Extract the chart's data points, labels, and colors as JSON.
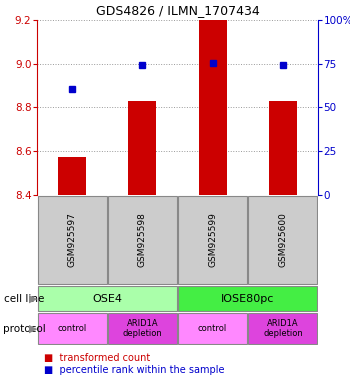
{
  "title": "GDS4826 / ILMN_1707434",
  "samples": [
    "GSM925597",
    "GSM925598",
    "GSM925599",
    "GSM925600"
  ],
  "bar_values": [
    8.575,
    8.83,
    9.2,
    8.83
  ],
  "bar_base": 8.4,
  "dot_values": [
    8.885,
    8.995,
    9.005,
    8.995
  ],
  "ylim": [
    8.4,
    9.2
  ],
  "y_left_ticks": [
    8.4,
    8.6,
    8.8,
    9.0,
    9.2
  ],
  "y_right_ticks": [
    0,
    25,
    50,
    75,
    100
  ],
  "y_right_tick_pos": [
    8.4,
    8.6,
    8.8,
    9.0,
    9.2
  ],
  "bar_color": "#cc0000",
  "dot_color": "#0000cc",
  "cell_line_labels": [
    "OSE4",
    "IOSE80pc"
  ],
  "cell_line_spans": [
    [
      0,
      2
    ],
    [
      2,
      4
    ]
  ],
  "cell_line_color_light": "#aaffaa",
  "cell_line_color_dark": "#44ee44",
  "protocol_labels": [
    "control",
    "ARID1A\ndepletion",
    "control",
    "ARID1A\ndepletion"
  ],
  "protocol_color_light": "#ff88ff",
  "protocol_color_dark": "#dd44dd",
  "grid_color": "#999999",
  "left_axis_color": "#cc0000",
  "right_axis_color": "#0000cc",
  "legend_bar_label": "transformed count",
  "legend_dot_label": "percentile rank within the sample",
  "sample_box_color": "#cccccc",
  "sample_box_edge": "#888888"
}
